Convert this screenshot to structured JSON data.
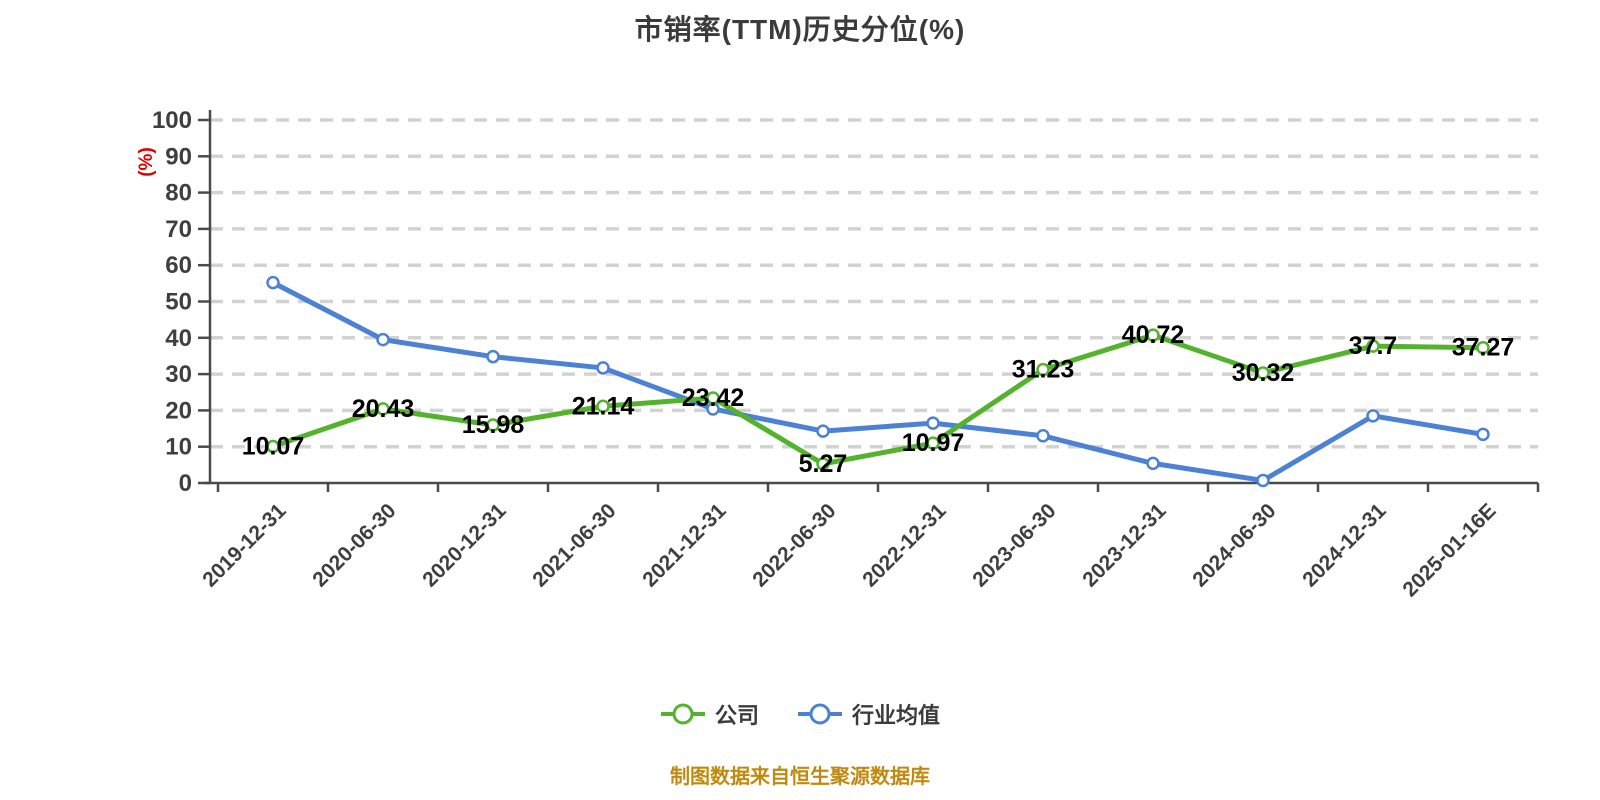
{
  "title": "市销率(TTM)历史分位(%)",
  "y_axis": {
    "unit_label": "(%)",
    "unit_label_color": "#e00000",
    "tick_labels": [
      "0",
      "10",
      "20",
      "30",
      "40",
      "50",
      "60",
      "70",
      "80",
      "90",
      "100"
    ]
  },
  "source_note": {
    "text": "制图数据来自恒生聚源数据库",
    "color": "#c08a10"
  },
  "chart_data": {
    "type": "line",
    "title": "市销率(TTM)历史分位(%)",
    "xlabel": "",
    "ylabel": "(%)",
    "ylim": [
      0,
      100
    ],
    "ytick_step": 10,
    "grid": "horizontal-dashed",
    "legend_position": "bottom",
    "categories": [
      "2019-12-31",
      "2020-06-30",
      "2020-12-31",
      "2021-06-30",
      "2021-12-31",
      "2022-06-30",
      "2022-12-31",
      "2023-06-30",
      "2023-12-31",
      "2024-06-30",
      "2024-12-31",
      "2025-01-16E"
    ],
    "series": [
      {
        "name": "公司",
        "slug": "company",
        "color": "#54b32d",
        "point_labels": true,
        "values": [
          10.07,
          20.43,
          15.98,
          21.14,
          23.42,
          5.27,
          10.97,
          31.23,
          40.72,
          30.32,
          37.7,
          37.27
        ]
      },
      {
        "name": "行业均值",
        "slug": "industry-average",
        "color": "#4c81d4",
        "point_labels": false,
        "values": [
          55.2,
          39.5,
          34.8,
          31.7,
          20.4,
          14.3,
          16.5,
          13.0,
          5.4,
          0.7,
          18.5,
          13.4
        ]
      }
    ]
  }
}
